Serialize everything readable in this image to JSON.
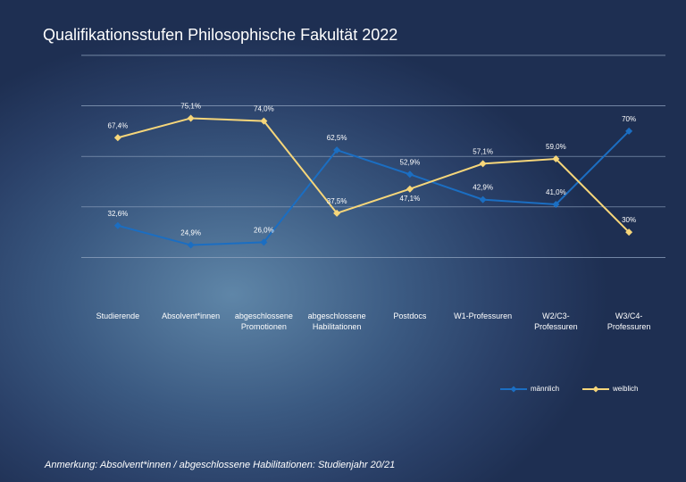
{
  "chart_data": {
    "type": "line",
    "title": "Qualifikationsstufen Philosophische Fakultät 2022",
    "annotation": "Anmerkung: Absolvent*innen / abgeschlossene Habilitationen: Studienjahr 20/21",
    "categories": [
      "Studierende",
      "Absolvent*innen",
      "abgeschlossene Promotionen",
      "abgeschlossene Habilitationen",
      "Postdocs",
      "W1-Professuren",
      "W2/C3-Professuren",
      "W3/C4-Professuren"
    ],
    "series": [
      {
        "name": "männlich",
        "color": "#1b6ec2",
        "values": [
          32.6,
          24.9,
          26.0,
          62.5,
          52.9,
          42.9,
          41.0,
          70
        ],
        "value_labels": [
          "32,6%",
          "24,9%",
          "26,0%",
          "62,5%",
          "52,9%",
          "42,9%",
          "41,0%",
          "70%"
        ]
      },
      {
        "name": "weiblich",
        "color": "#f6d67a",
        "values": [
          67.4,
          75.1,
          74.0,
          37.5,
          47.1,
          57.1,
          59.0,
          30
        ],
        "value_labels": [
          "67,4%",
          "75,1%",
          "74,0%",
          "37,5%",
          "47,1%",
          "57,1%",
          "59,0%",
          "30%"
        ]
      }
    ],
    "ylim": [
      0,
      100
    ],
    "yticks": [
      20,
      40,
      60,
      80,
      100
    ],
    "grid": true,
    "legend": "bottom-right"
  }
}
